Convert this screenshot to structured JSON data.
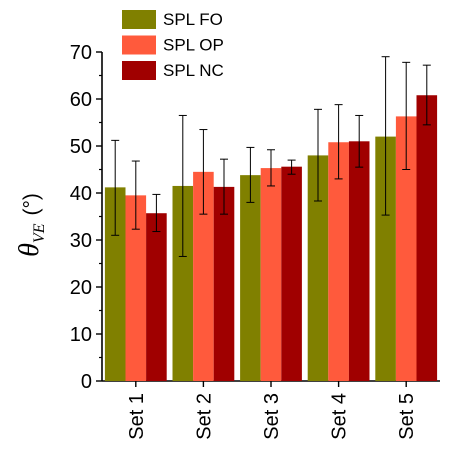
{
  "chart_data": {
    "type": "bar",
    "ylabel_symbol": "θ",
    "ylabel_subscript": "VE",
    "ylabel_unit": "(°)",
    "categories": [
      "Set 1",
      "Set 2",
      "Set 3",
      "Set 4",
      "Set 5"
    ],
    "series": [
      {
        "name": "SPL FO",
        "color": "#808000",
        "values": [
          41.2,
          41.5,
          43.8,
          48.0,
          52.0
        ],
        "err_low": [
          31.0,
          26.5,
          38.0,
          38.3,
          35.3
        ],
        "err_high": [
          51.2,
          56.5,
          49.7,
          57.8,
          69.0
        ]
      },
      {
        "name": "SPL OP",
        "color": "#ff5a3c",
        "values": [
          39.5,
          44.5,
          45.3,
          50.8,
          56.3
        ],
        "err_low": [
          32.3,
          35.5,
          41.5,
          43.0,
          45.0
        ],
        "err_high": [
          46.8,
          53.5,
          49.2,
          58.8,
          67.8
        ]
      },
      {
        "name": "SPL NC",
        "color": "#a00000",
        "values": [
          35.7,
          41.3,
          45.6,
          51.0,
          60.8
        ],
        "err_low": [
          31.8,
          35.5,
          44.0,
          45.5,
          54.5
        ],
        "err_high": [
          39.7,
          47.2,
          47.0,
          56.5,
          67.2
        ]
      }
    ],
    "ylim": [
      0,
      70
    ],
    "yticks": [
      0,
      10,
      20,
      30,
      40,
      50,
      60,
      70
    ],
    "legend_position": "top-left",
    "grid": false
  }
}
